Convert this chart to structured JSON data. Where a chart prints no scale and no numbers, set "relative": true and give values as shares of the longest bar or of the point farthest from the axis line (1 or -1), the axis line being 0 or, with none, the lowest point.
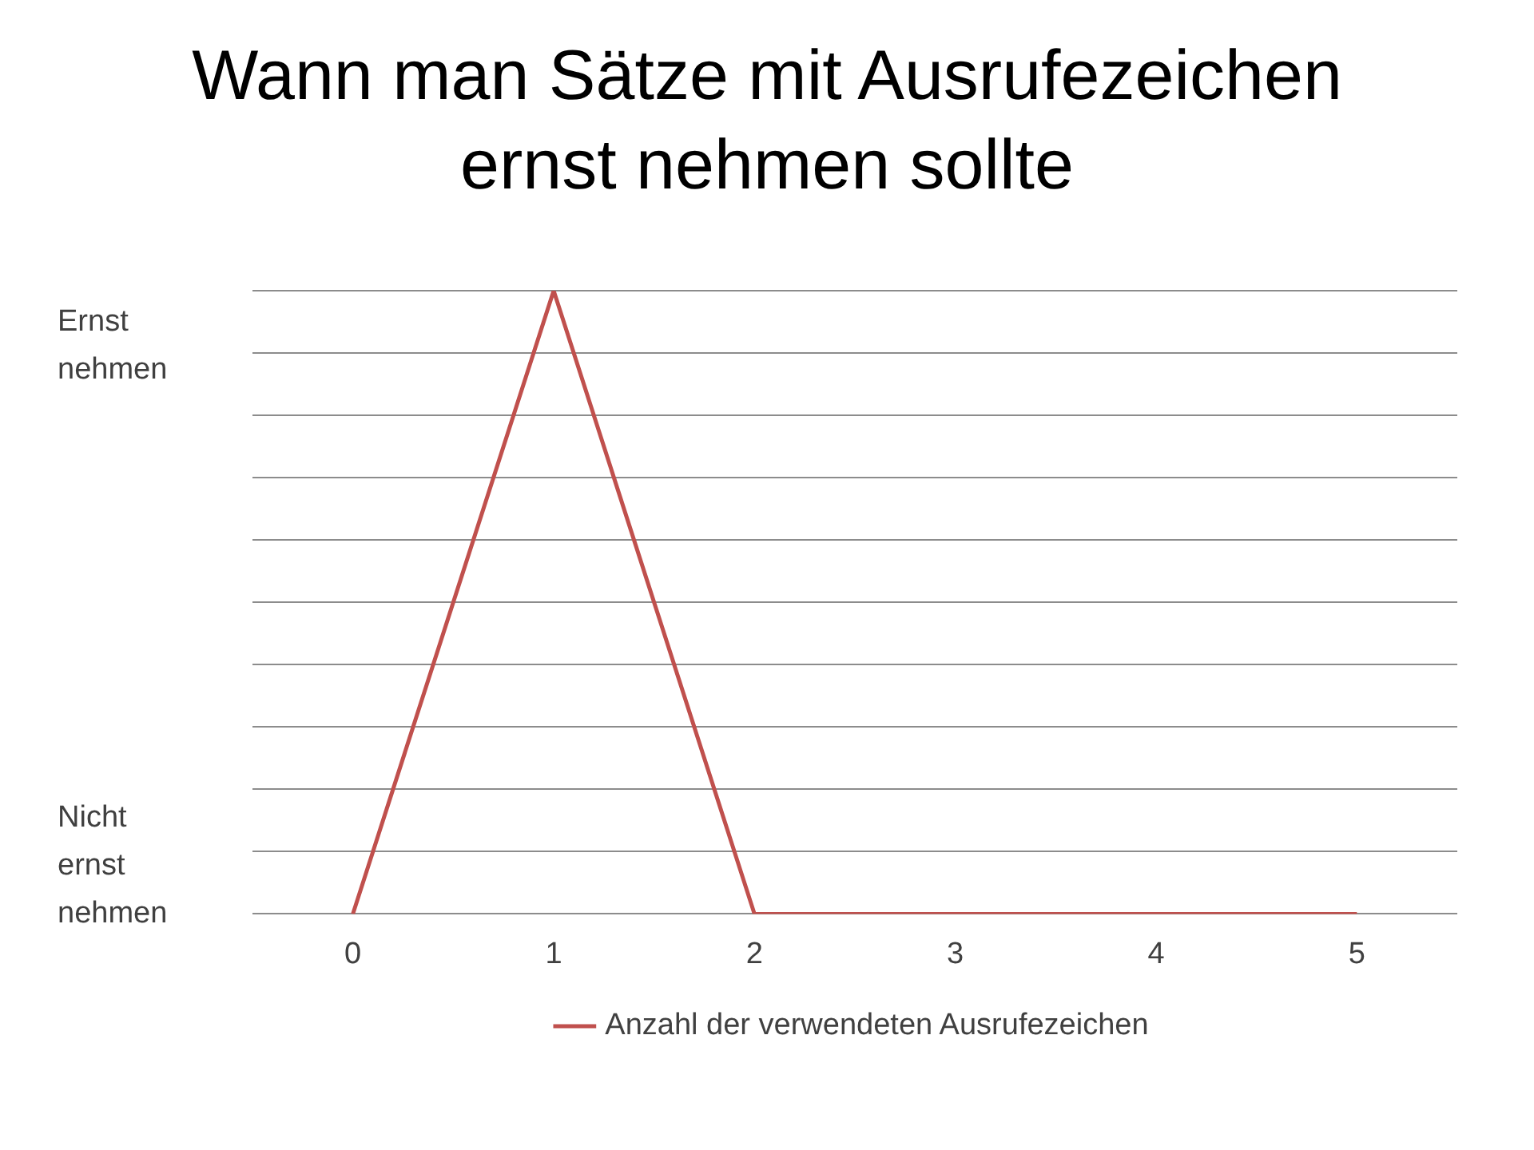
{
  "chart_data": {
    "type": "line",
    "title": "Wann man Sätze mit Ausrufezeichen ernst nehmen sollte",
    "categories": [
      "0",
      "1",
      "2",
      "3",
      "4",
      "5"
    ],
    "series": [
      {
        "name": "Anzahl der verwendeten Ausrufezeichen",
        "color": "#c0504d",
        "values": [
          0,
          1,
          0,
          0,
          0,
          0
        ]
      }
    ],
    "relative": true,
    "annotations": [
      "Ernst nehmen",
      "Nicht ernst nehmen"
    ],
    "grid": "y",
    "legend": "bottom",
    "marker": "none",
    "line_style": "solid"
  }
}
